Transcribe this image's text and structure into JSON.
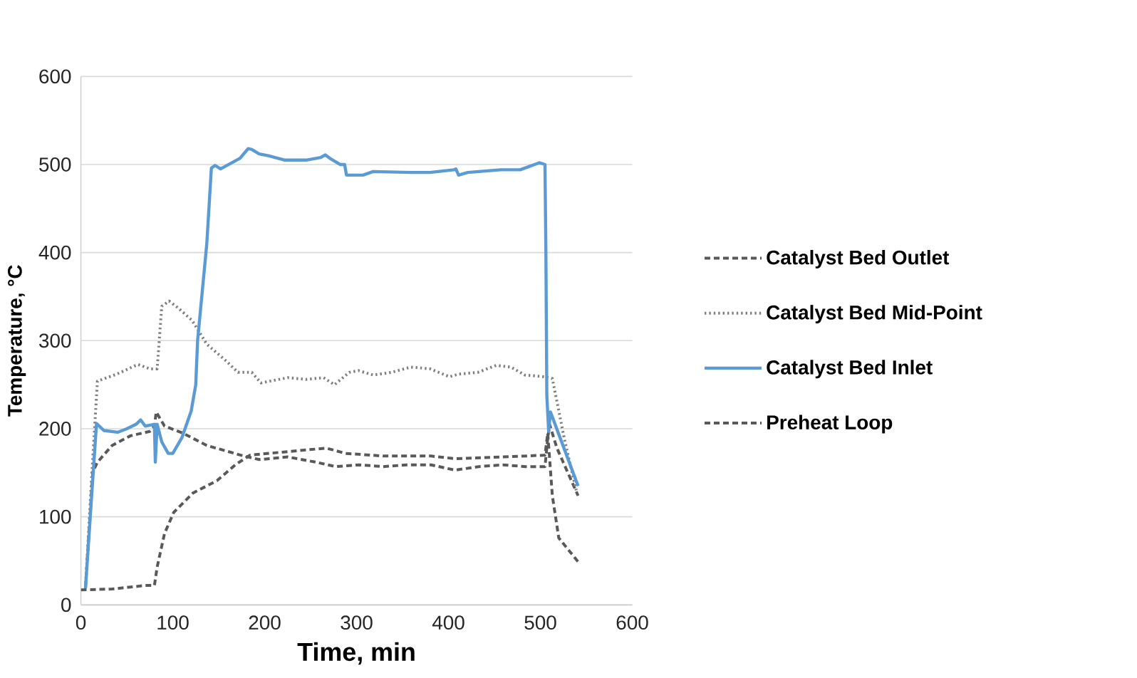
{
  "chart_data": {
    "type": "line",
    "xlabel": "Time, min",
    "ylabel": "Temperature, °C",
    "xlim": [
      0,
      600
    ],
    "ylim": [
      0,
      600
    ],
    "xticks": [
      0,
      100,
      200,
      300,
      400,
      500,
      600
    ],
    "yticks": [
      0,
      100,
      200,
      300,
      400,
      500,
      600
    ],
    "grid": "y",
    "legend": "right",
    "series": [
      {
        "name": "Catalyst Bed Outlet",
        "color": "#595959",
        "line_style": "dashed",
        "x": [
          5,
          13,
          18,
          34,
          54,
          75,
          80,
          82,
          91,
          111,
          137,
          174,
          194,
          225,
          256,
          277,
          303,
          329,
          355,
          381,
          407,
          433,
          459,
          484,
          505,
          508,
          510,
          518,
          541
        ],
        "values": [
          19,
          151,
          162,
          181,
          192,
          197,
          203,
          219,
          203,
          195,
          181,
          170,
          165,
          168,
          162,
          157,
          159,
          157,
          159,
          159,
          153,
          157,
          159,
          157,
          157,
          189,
          205,
          178,
          124
        ]
      },
      {
        "name": "Catalyst Bed Mid-Point",
        "color": "#7f7f7f",
        "line_style": "dotted",
        "x": [
          5,
          12,
          18,
          39,
          62,
          75,
          83,
          88,
          96,
          106,
          121,
          137,
          158,
          171,
          186,
          196,
          225,
          245,
          264,
          276,
          292,
          302,
          318,
          338,
          359,
          380,
          401,
          411,
          432,
          452,
          468,
          483,
          505,
          513,
          526,
          539
        ],
        "values": [
          20,
          150,
          254,
          262,
          273,
          268,
          268,
          339,
          345,
          337,
          323,
          296,
          277,
          264,
          264,
          252,
          258,
          256,
          258,
          250,
          264,
          266,
          261,
          264,
          270,
          268,
          259,
          262,
          264,
          272,
          270,
          261,
          259,
          257,
          189,
          130
        ]
      },
      {
        "name": "Catalyst Bed Inlet",
        "color": "#5b9bd5",
        "line_style": "solid",
        "x": [
          5,
          17,
          25,
          40,
          50,
          60,
          65,
          70,
          80,
          81,
          83,
          88,
          95,
          100,
          110,
          120,
          125,
          127,
          137,
          142,
          146,
          152,
          173,
          182,
          186,
          194,
          204,
          222,
          245,
          261,
          266,
          271,
          282,
          287,
          289,
          307,
          318,
          359,
          380,
          406,
          408,
          411,
          421,
          457,
          478,
          499,
          505,
          506,
          507,
          509,
          511,
          541
        ],
        "values": [
          19,
          206,
          198,
          196,
          200,
          205,
          210,
          203,
          205,
          162,
          205,
          185,
          172,
          172,
          190,
          220,
          250,
          300,
          410,
          496,
          499,
          495,
          507,
          518,
          517,
          512,
          510,
          505,
          505,
          508,
          511,
          507,
          500,
          500,
          488,
          488,
          492,
          491,
          491,
          494,
          495,
          488,
          491,
          494,
          494,
          502,
          500,
          400,
          238,
          197,
          219,
          135
        ]
      },
      {
        "name": "Preheat Loop",
        "color": "#595959",
        "line_style": "dashed",
        "x": [
          0,
          34,
          70,
          80,
          83,
          91,
          101,
          122,
          148,
          168,
          184,
          225,
          267,
          288,
          329,
          381,
          407,
          459,
          505,
          508,
          513,
          520,
          541
        ],
        "values": [
          17,
          18,
          22,
          22,
          43,
          81,
          105,
          127,
          141,
          159,
          170,
          174,
          178,
          172,
          169,
          169,
          166,
          168,
          170,
          195,
          124,
          76,
          49
        ]
      }
    ]
  }
}
